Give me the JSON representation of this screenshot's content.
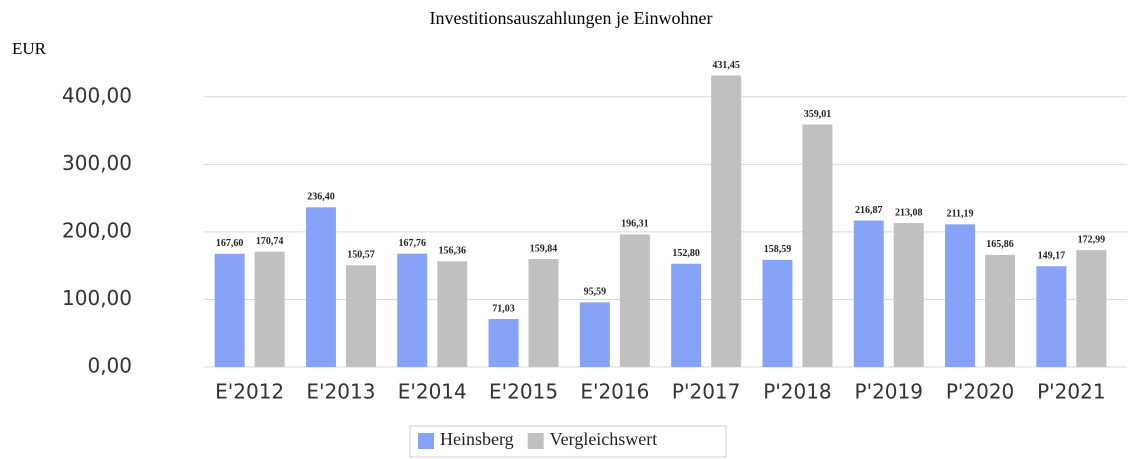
{
  "chart_data": {
    "type": "bar",
    "title": "Investitionsauszahlungen je Einwohner",
    "y_label": "EUR",
    "categories": [
      "E'2012",
      "E'2013",
      "E'2014",
      "E'2015",
      "E'2016",
      "P'2017",
      "P'2018",
      "P'2019",
      "P'2020",
      "P'2021"
    ],
    "series": [
      {
        "name": "Heinsberg",
        "color": "#87a3f7",
        "values": [
          167.6,
          236.4,
          167.76,
          71.03,
          95.59,
          152.8,
          158.59,
          216.87,
          211.19,
          149.17
        ],
        "value_labels": [
          "167,60",
          "236,40",
          "167,76",
          "71,03",
          "95,59",
          "152,80",
          "158,59",
          "216,87",
          "211,19",
          "149,17"
        ]
      },
      {
        "name": "Vergleichswert",
        "color": "#c0c0c0",
        "values": [
          170.74,
          150.57,
          156.36,
          159.84,
          196.31,
          431.45,
          359.01,
          213.08,
          165.86,
          172.99
        ],
        "value_labels": [
          "170,74",
          "150,57",
          "156,36",
          "159,84",
          "196,31",
          "431,45",
          "359,01",
          "213,08",
          "165,86",
          "172,99"
        ]
      }
    ],
    "ylim": [
      0,
      450
    ],
    "yticks": [
      {
        "value": 0,
        "label": "0,00"
      },
      {
        "value": 100,
        "label": "100,00"
      },
      {
        "value": 200,
        "label": "200,00"
      },
      {
        "value": 300,
        "label": "300,00"
      },
      {
        "value": 400,
        "label": "400,00"
      }
    ],
    "grid": true,
    "legend": "bottom"
  }
}
